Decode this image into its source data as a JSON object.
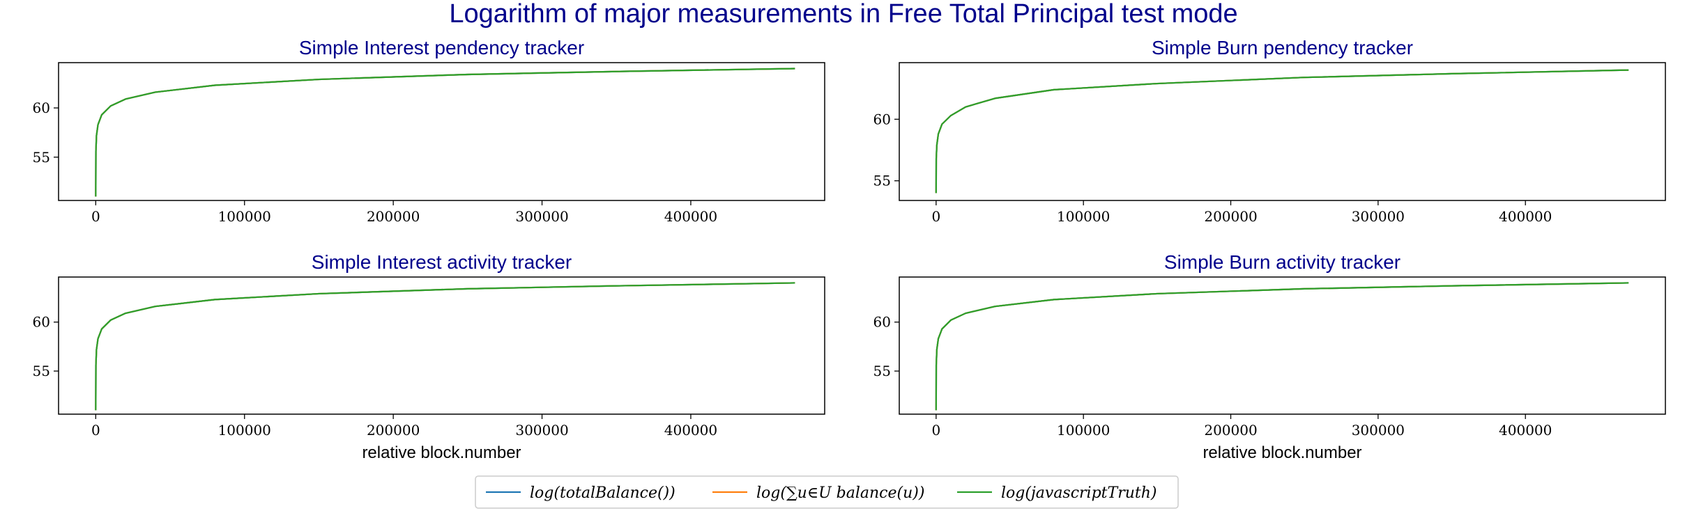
{
  "colors": {
    "title": "#00008b",
    "totalBalance": "#1f77b4",
    "sumBalance": "#ff7f0e",
    "javascriptTruth": "#2ca02c"
  },
  "chart_data": {
    "type": "line",
    "title": "Logarithm of major measurements in Free Total Principal test mode",
    "legend": {
      "placement": "bottom-center",
      "entries": [
        {
          "series": "totalBalance",
          "label": "log(totalBalance())"
        },
        {
          "series": "sumBalance",
          "label": "log(∑u∈U balance(u))"
        },
        {
          "series": "javascriptTruth",
          "label": "log(javascriptTruth)"
        }
      ]
    },
    "panels": [
      {
        "title": "Simple Interest pendency tracker",
        "xlabel": "",
        "xlim": [
          -25000,
          490000
        ],
        "ylim": [
          50.6,
          64.6
        ],
        "xticks": [
          0,
          100000,
          200000,
          300000,
          400000
        ],
        "yticks": [
          55,
          60
        ],
        "grid": false,
        "series": [
          {
            "name": "totalBalance",
            "x": [
              0,
              100,
              500,
              1500,
              4000,
              10000,
              20000,
              40000,
              80000,
              150000,
              250000,
              350000,
              470000
            ],
            "y": [
              51.0,
              55.6,
              57.2,
              58.3,
              59.3,
              60.2,
              60.9,
              61.6,
              62.3,
              62.9,
              63.4,
              63.7,
              64.0
            ]
          },
          {
            "name": "sumBalance",
            "x": [
              0,
              100,
              500,
              1500,
              4000,
              10000,
              20000,
              40000,
              80000,
              150000,
              250000,
              350000,
              470000
            ],
            "y": [
              51.0,
              55.6,
              57.2,
              58.3,
              59.3,
              60.2,
              60.9,
              61.6,
              62.3,
              62.9,
              63.4,
              63.7,
              64.0
            ]
          },
          {
            "name": "javascriptTruth",
            "x": [
              0,
              100,
              500,
              1500,
              4000,
              10000,
              20000,
              40000,
              80000,
              150000,
              250000,
              350000,
              470000
            ],
            "y": [
              51.0,
              55.6,
              57.2,
              58.3,
              59.3,
              60.2,
              60.9,
              61.6,
              62.3,
              62.9,
              63.4,
              63.7,
              64.0
            ]
          }
        ]
      },
      {
        "title": "Simple Burn pendency tracker",
        "xlabel": "",
        "xlim": [
          -25000,
          495000
        ],
        "ylim": [
          53.4,
          64.6
        ],
        "xticks": [
          0,
          100000,
          200000,
          300000,
          400000
        ],
        "yticks": [
          55,
          60
        ],
        "grid": false,
        "series": [
          {
            "name": "totalBalance",
            "x": [
              0,
              100,
              500,
              1500,
              4000,
              10000,
              20000,
              40000,
              80000,
              150000,
              250000,
              350000,
              470000
            ],
            "y": [
              54.0,
              56.8,
              57.9,
              58.8,
              59.6,
              60.3,
              61.0,
              61.7,
              62.4,
              62.9,
              63.4,
              63.7,
              64.0
            ]
          },
          {
            "name": "sumBalance",
            "x": [
              0,
              100,
              500,
              1500,
              4000,
              10000,
              20000,
              40000,
              80000,
              150000,
              250000,
              350000,
              470000
            ],
            "y": [
              54.0,
              56.8,
              57.9,
              58.8,
              59.6,
              60.3,
              61.0,
              61.7,
              62.4,
              62.9,
              63.4,
              63.7,
              64.0
            ]
          },
          {
            "name": "javascriptTruth",
            "x": [
              0,
              100,
              500,
              1500,
              4000,
              10000,
              20000,
              40000,
              80000,
              150000,
              250000,
              350000,
              470000
            ],
            "y": [
              54.0,
              56.8,
              57.9,
              58.8,
              59.6,
              60.3,
              61.0,
              61.7,
              62.4,
              62.9,
              63.4,
              63.7,
              64.0
            ]
          }
        ]
      },
      {
        "title": "Simple Interest activity tracker",
        "xlabel": "relative block.number",
        "xlim": [
          -25000,
          490000
        ],
        "ylim": [
          50.6,
          64.6
        ],
        "xticks": [
          0,
          100000,
          200000,
          300000,
          400000
        ],
        "yticks": [
          55,
          60
        ],
        "grid": false,
        "series": [
          {
            "name": "totalBalance",
            "x": [
              0,
              100,
              500,
              1500,
              4000,
              10000,
              20000,
              40000,
              80000,
              150000,
              250000,
              350000,
              470000
            ],
            "y": [
              51.0,
              55.6,
              57.2,
              58.3,
              59.3,
              60.2,
              60.9,
              61.6,
              62.3,
              62.9,
              63.4,
              63.7,
              64.0
            ]
          },
          {
            "name": "sumBalance",
            "x": [
              0,
              100,
              500,
              1500,
              4000,
              10000,
              20000,
              40000,
              80000,
              150000,
              250000,
              350000,
              470000
            ],
            "y": [
              51.0,
              55.6,
              57.2,
              58.3,
              59.3,
              60.2,
              60.9,
              61.6,
              62.3,
              62.9,
              63.4,
              63.7,
              64.0
            ]
          },
          {
            "name": "javascriptTruth",
            "x": [
              0,
              100,
              500,
              1500,
              4000,
              10000,
              20000,
              40000,
              80000,
              150000,
              250000,
              350000,
              470000
            ],
            "y": [
              51.0,
              55.6,
              57.2,
              58.3,
              59.3,
              60.2,
              60.9,
              61.6,
              62.3,
              62.9,
              63.4,
              63.7,
              64.0
            ]
          }
        ]
      },
      {
        "title": "Simple Burn activity tracker",
        "xlabel": "relative block.number",
        "xlim": [
          -25000,
          495000
        ],
        "ylim": [
          50.6,
          64.6
        ],
        "xticks": [
          0,
          100000,
          200000,
          300000,
          400000
        ],
        "yticks": [
          55,
          60
        ],
        "grid": false,
        "series": [
          {
            "name": "totalBalance",
            "x": [
              0,
              100,
              500,
              1500,
              4000,
              10000,
              20000,
              40000,
              80000,
              150000,
              250000,
              350000,
              470000
            ],
            "y": [
              51.0,
              55.6,
              57.2,
              58.3,
              59.3,
              60.2,
              60.9,
              61.6,
              62.3,
              62.9,
              63.4,
              63.7,
              64.0
            ]
          },
          {
            "name": "sumBalance",
            "x": [
              0,
              100,
              500,
              1500,
              4000,
              10000,
              20000,
              40000,
              80000,
              150000,
              250000,
              350000,
              470000
            ],
            "y": [
              51.0,
              55.6,
              57.2,
              58.3,
              59.3,
              60.2,
              60.9,
              61.6,
              62.3,
              62.9,
              63.4,
              63.7,
              64.0
            ]
          },
          {
            "name": "javascriptTruth",
            "x": [
              0,
              100,
              500,
              1500,
              4000,
              10000,
              20000,
              40000,
              80000,
              150000,
              250000,
              350000,
              470000
            ],
            "y": [
              51.0,
              55.6,
              57.2,
              58.3,
              59.3,
              60.2,
              60.9,
              61.6,
              62.3,
              62.9,
              63.4,
              63.7,
              64.0
            ]
          }
        ]
      }
    ]
  }
}
